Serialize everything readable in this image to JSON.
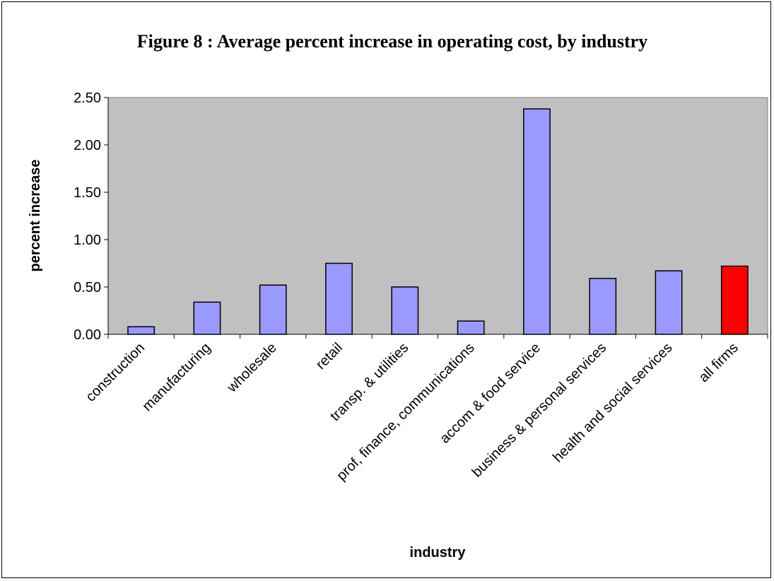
{
  "chart_data": {
    "type": "bar",
    "title": "Figure 8 : Average percent increase in operating cost, by industry",
    "xlabel": "industry",
    "ylabel": "percent increase",
    "ylim": [
      0,
      2.5
    ],
    "yticks": [
      "0.00",
      "0.50",
      "1.00",
      "1.50",
      "2.00",
      "2.50"
    ],
    "categories": [
      "construction",
      "manufacturing",
      "wholesale",
      "retail",
      "transp. & utilities",
      "prof, finance, communications",
      "accom & food service",
      "business & personal services",
      "health and social services",
      "all firms"
    ],
    "values": [
      0.08,
      0.34,
      0.52,
      0.75,
      0.5,
      0.14,
      2.38,
      0.59,
      0.67,
      0.72
    ],
    "colors": {
      "bar": "#9999ff",
      "highlight": "#ff0000",
      "plot_background": "#c0c0c0",
      "bar_outline": "#000000"
    },
    "highlight_index": 9,
    "grid": false,
    "legend": "none"
  }
}
